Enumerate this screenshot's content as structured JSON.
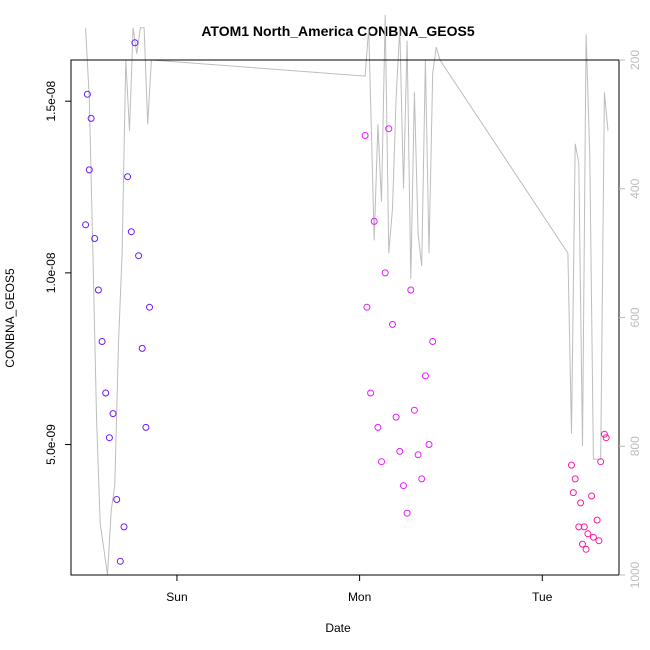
{
  "chart_data": {
    "type": "scatter",
    "title": "ATOM1 North_America CONBNA_GEOS5",
    "xlabel": "Date",
    "ylabel": "CONBNA_GEOS5",
    "x_ticks": [
      "Sun",
      "Mon",
      "Tue"
    ],
    "y_ticks": [
      "5.0e-09",
      "1.0e-08",
      "1.5e-08"
    ],
    "y_tick_values": [
      5e-09,
      1e-08,
      1.5e-08
    ],
    "ylim": [
      1.2e-09,
      1.62e-08
    ],
    "right_axis_ticks": [
      "200",
      "400",
      "600",
      "800",
      "1000"
    ],
    "right_axis_tick_values": [
      200,
      400,
      600,
      800,
      1000
    ],
    "right_axis_range": [
      1000,
      200
    ],
    "grid": false,
    "colors": {
      "day1": "#6a1bff",
      "day2": "#e51bff",
      "day3": "#ff1b9c",
      "pressure_line": "#bdbdbd"
    },
    "series": [
      {
        "x": [
          0.0,
          0.01,
          0.02,
          0.03,
          0.05,
          0.07,
          0.09,
          0.11,
          0.13,
          0.15,
          0.17,
          0.19,
          0.21,
          0.23,
          0.25,
          0.27,
          0.29,
          0.31,
          0.33,
          0.35
        ],
        "y": [
          1.14e-08,
          1.52e-08,
          1.3e-08,
          1.45e-08,
          1.1e-08,
          9.5e-09,
          8e-09,
          6.5e-09,
          5.2e-09,
          5.9e-09,
          3.4e-09,
          1.6e-09,
          2.6e-09,
          1.28e-08,
          1.12e-08,
          1.67e-08,
          1.05e-08,
          7.8e-09,
          5.5e-09,
          9e-09
        ]
      },
      {
        "x": [
          1.53,
          1.54,
          1.56,
          1.58,
          1.6,
          1.62,
          1.64,
          1.66,
          1.68,
          1.7,
          1.72,
          1.74,
          1.76,
          1.78,
          1.8,
          1.82,
          1.84,
          1.86,
          1.88,
          1.9
        ],
        "y": [
          1.4e-08,
          9e-09,
          6.5e-09,
          1.15e-08,
          5.5e-09,
          4.5e-09,
          1e-08,
          1.42e-08,
          8.5e-09,
          5.8e-09,
          4.8e-09,
          3.8e-09,
          3e-09,
          9.5e-09,
          6e-09,
          4.7e-09,
          4e-09,
          7e-09,
          5e-09,
          8e-09
        ]
      },
      {
        "x": [
          2.66,
          2.67,
          2.68,
          2.7,
          2.71,
          2.72,
          2.73,
          2.74,
          2.75,
          2.77,
          2.78,
          2.8,
          2.81,
          2.82,
          2.84,
          2.85
        ],
        "y": [
          4.4e-09,
          3.6e-09,
          4e-09,
          2.6e-09,
          3.3e-09,
          2.1e-09,
          2.6e-09,
          1.95e-09,
          2.4e-09,
          3.5e-09,
          2.3e-09,
          2.8e-09,
          2.2e-09,
          4.5e-09,
          5.3e-09,
          5.2e-09
        ]
      }
    ],
    "pressure_series": {
      "x": [
        0.0,
        0.02,
        0.04,
        0.06,
        0.08,
        0.1,
        0.12,
        0.14,
        0.16,
        0.18,
        0.2,
        0.22,
        0.24,
        0.26,
        0.28,
        0.3,
        0.32,
        0.34,
        0.36,
        1.53,
        1.55,
        1.58,
        1.6,
        1.62,
        1.64,
        1.66,
        1.68,
        1.7,
        1.72,
        1.74,
        1.76,
        1.78,
        1.8,
        1.82,
        1.84,
        1.86,
        1.88,
        1.9,
        1.92,
        1.94,
        2.64,
        2.66,
        2.68,
        2.7,
        2.72,
        2.74,
        2.76,
        2.78,
        2.8,
        2.82,
        2.84,
        2.86
      ],
      "y": [
        150,
        260,
        500,
        760,
        920,
        960,
        1000,
        900,
        860,
        640,
        500,
        200,
        310,
        150,
        190,
        150,
        150,
        300,
        200,
        225,
        150,
        480,
        300,
        420,
        130,
        500,
        430,
        260,
        150,
        400,
        170,
        540,
        250,
        470,
        520,
        200,
        500,
        220,
        180,
        200,
        500,
        780,
        330,
        360,
        800,
        160,
        350,
        820,
        820,
        820,
        250,
        310
      ]
    },
    "x_range": [
      -0.08,
      2.92
    ]
  }
}
